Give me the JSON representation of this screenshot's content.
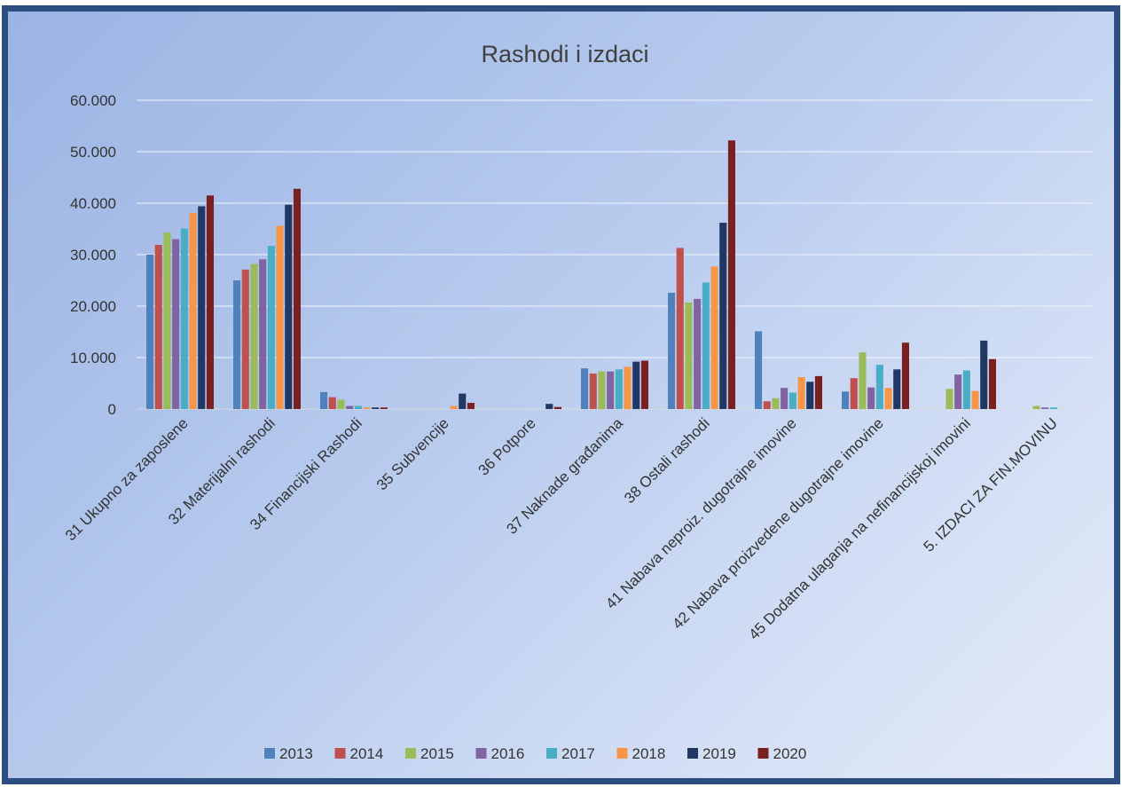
{
  "chart_data": {
    "type": "bar",
    "title": "Rashodi i izdaci",
    "xlabel": "",
    "ylabel": "",
    "ylim": [
      0,
      60000
    ],
    "yticks": [
      0,
      10000,
      20000,
      30000,
      40000,
      50000,
      60000
    ],
    "ytick_labels": [
      "0",
      "10.000",
      "20.000",
      "30.000",
      "40.000",
      "50.000",
      "60.000"
    ],
    "grid": true,
    "legend_position": "bottom",
    "categories": [
      "31 Ukupno za zaposlene",
      "32 Materijalni rashodi",
      "34 Financijski Rashodi",
      "35 Subvencije",
      "36 Potpore",
      "37 Naknade građanima",
      "38 Ostali rashodi",
      "41 Nabava neproiz. dugotrajne imovine",
      "42 Nabava proizvedene dugotrajne imovine",
      "45 Dodatna ulaganja na nefinancijskoj imovini",
      "5. IZDACI ZA FIN.MOVINU"
    ],
    "series": [
      {
        "name": "2013",
        "color": "#4f81bd",
        "values": [
          30000,
          25000,
          3300,
          0,
          0,
          7900,
          22600,
          15100,
          3400,
          0,
          0
        ]
      },
      {
        "name": "2014",
        "color": "#c0504d",
        "values": [
          31900,
          27100,
          2300,
          0,
          0,
          6900,
          31300,
          1500,
          6000,
          0,
          0
        ]
      },
      {
        "name": "2015",
        "color": "#9bbb59",
        "values": [
          34300,
          28200,
          1800,
          0,
          0,
          7300,
          20700,
          2100,
          11000,
          3900,
          600
        ]
      },
      {
        "name": "2016",
        "color": "#8064a2",
        "values": [
          33000,
          29100,
          600,
          0,
          0,
          7300,
          21400,
          4100,
          4200,
          6700,
          300
        ]
      },
      {
        "name": "2017",
        "color": "#4bacc6",
        "values": [
          35100,
          31700,
          600,
          0,
          0,
          7700,
          24600,
          3200,
          8600,
          7500,
          300
        ]
      },
      {
        "name": "2018",
        "color": "#f79646",
        "values": [
          38100,
          35600,
          300,
          600,
          0,
          8200,
          27700,
          6200,
          4100,
          3500,
          0
        ]
      },
      {
        "name": "2019",
        "color": "#1f3864",
        "values": [
          39400,
          39700,
          300,
          3000,
          1000,
          9200,
          36200,
          5300,
          7700,
          13300,
          0
        ]
      },
      {
        "name": "2020",
        "color": "#7b2020",
        "values": [
          41500,
          42800,
          300,
          1200,
          400,
          9400,
          52200,
          6400,
          12900,
          9700,
          0
        ]
      }
    ]
  }
}
